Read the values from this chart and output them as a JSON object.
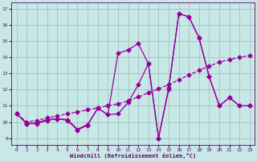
{
  "background_color": "#c8e8e8",
  "grid_color": "#9bbaba",
  "line_color": "#990099",
  "tick_color": "#660066",
  "xlabel": "Windchill (Refroidissement éolien,°C)",
  "ylim": [
    8.6,
    17.4
  ],
  "xlim": [
    -0.5,
    23.5
  ],
  "yticks": [
    9,
    10,
    11,
    12,
    13,
    14,
    15,
    16,
    17
  ],
  "xticks": [
    0,
    1,
    2,
    3,
    4,
    5,
    6,
    7,
    8,
    9,
    10,
    11,
    12,
    13,
    14,
    15,
    16,
    17,
    18,
    19,
    20,
    21,
    22,
    23
  ],
  "s1_x": [
    0,
    1,
    2,
    3,
    4,
    5,
    6,
    7,
    8,
    9,
    10,
    11,
    12,
    13,
    14,
    15,
    16,
    17,
    18,
    19,
    20,
    21,
    22,
    23
  ],
  "s1_y": [
    10.5,
    9.9,
    9.9,
    10.1,
    10.2,
    10.1,
    9.5,
    9.8,
    10.85,
    10.45,
    14.25,
    14.45,
    14.85,
    13.6,
    9.0,
    12.1,
    16.7,
    16.5,
    15.2,
    12.8,
    11.0,
    11.5,
    11.0,
    11.0
  ],
  "s2_x": [
    0,
    1,
    2,
    3,
    4,
    5,
    6,
    7,
    8,
    9,
    10,
    11,
    12,
    13,
    14,
    15,
    16,
    17,
    18,
    19,
    20,
    21,
    22,
    23
  ],
  "s2_y": [
    10.5,
    9.9,
    9.95,
    10.15,
    10.2,
    10.15,
    9.55,
    9.85,
    10.85,
    10.45,
    10.5,
    11.2,
    12.3,
    13.6,
    9.0,
    12.0,
    16.7,
    16.5,
    15.2,
    12.8,
    11.0,
    11.5,
    11.0,
    11.0
  ],
  "s3_x": [
    0,
    1,
    2,
    3,
    4,
    5,
    6,
    7,
    8,
    9,
    10,
    11,
    12,
    13,
    14,
    15,
    16,
    17,
    18,
    19,
    20,
    21,
    22,
    23
  ],
  "s3_y": [
    10.5,
    10.0,
    10.1,
    10.25,
    10.38,
    10.5,
    10.62,
    10.75,
    10.88,
    11.0,
    11.12,
    11.3,
    11.55,
    11.8,
    12.05,
    12.3,
    12.6,
    12.9,
    13.2,
    13.45,
    13.7,
    13.85,
    14.0,
    14.1
  ]
}
